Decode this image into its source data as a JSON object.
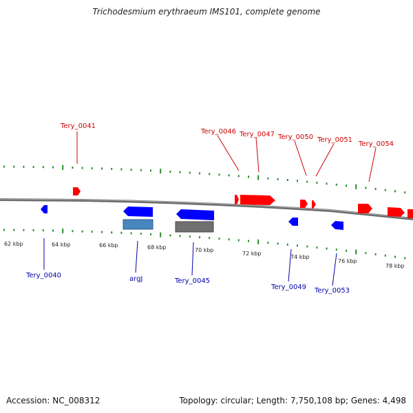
{
  "title": "Trichodesmium erythraeum IMS101, complete genome",
  "footer": {
    "accession": "Accession: NC_008312",
    "summary": "Topology: circular; Length: 7,750,108 bp; Genes: 4,498"
  },
  "colors": {
    "forward_gene": "#ff0000",
    "reverse_gene": "#0000ff",
    "forward_label": "#cc0000",
    "reverse_label": "#0000aa",
    "ticks": "#2a8a2a",
    "backbone": "#808080",
    "feature_blue": "#4a86c0",
    "feature_gray": "#707070"
  },
  "scale_labels": [
    "62 kbp",
    "64 kbp",
    "66 kbp",
    "68 kbp",
    "70 kbp",
    "72 kbp",
    "74 kbp",
    "76 kbp",
    "78 kbp"
  ],
  "gene_labels_forward": [
    "Tery_0041",
    "Tery_0046",
    "Tery_0047",
    "Tery_0050",
    "Tery_0051",
    "Tery_0054"
  ],
  "gene_labels_reverse": [
    "Tery_0040",
    "argJ",
    "Tery_0045",
    "Tery_0049",
    "Tery_0053"
  ]
}
